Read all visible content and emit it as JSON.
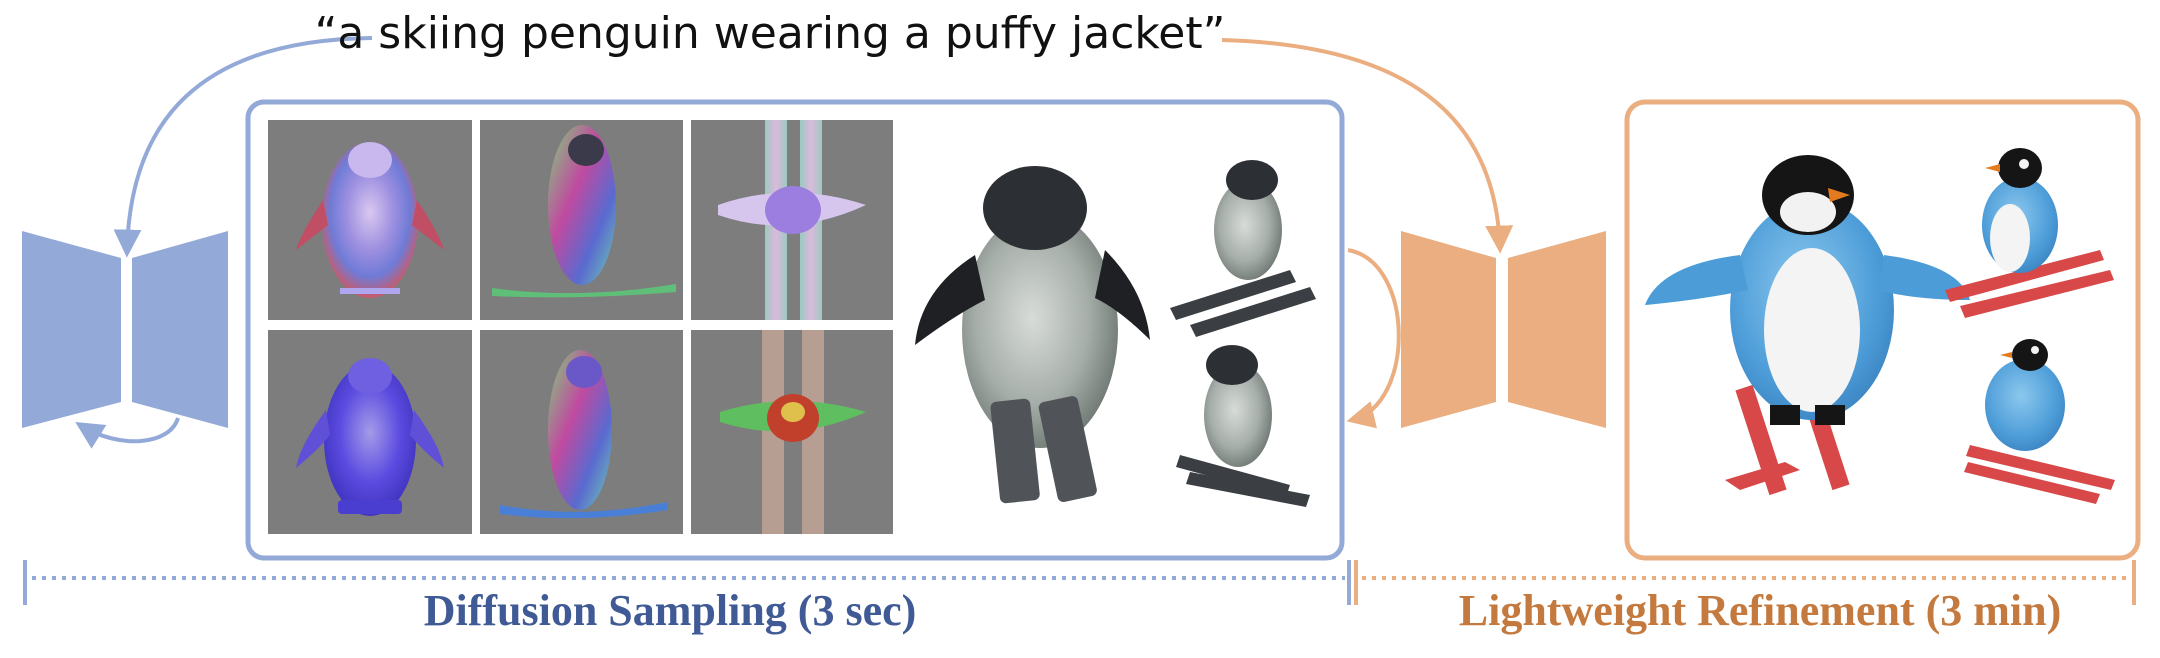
{
  "prompt": "“a skiing penguin wearing a puffy jacket”",
  "stages": {
    "diffusion": {
      "label": "Diffusion Sampling (3 sec)"
    },
    "refinement": {
      "label": "Lightweight Refinement (3 min)"
    }
  },
  "colors": {
    "blue": "#93a9d8",
    "orange": "#ebae80",
    "blue_text": "#3f5a95",
    "orange_text": "#c47a3e",
    "tile_bg": "#7d7d7d"
  },
  "icons": [
    "encoder-decoder-icon",
    "loop-arrow-icon",
    "penguin-normal-map",
    "penguin-3d-coarse",
    "penguin-3d-refined"
  ]
}
